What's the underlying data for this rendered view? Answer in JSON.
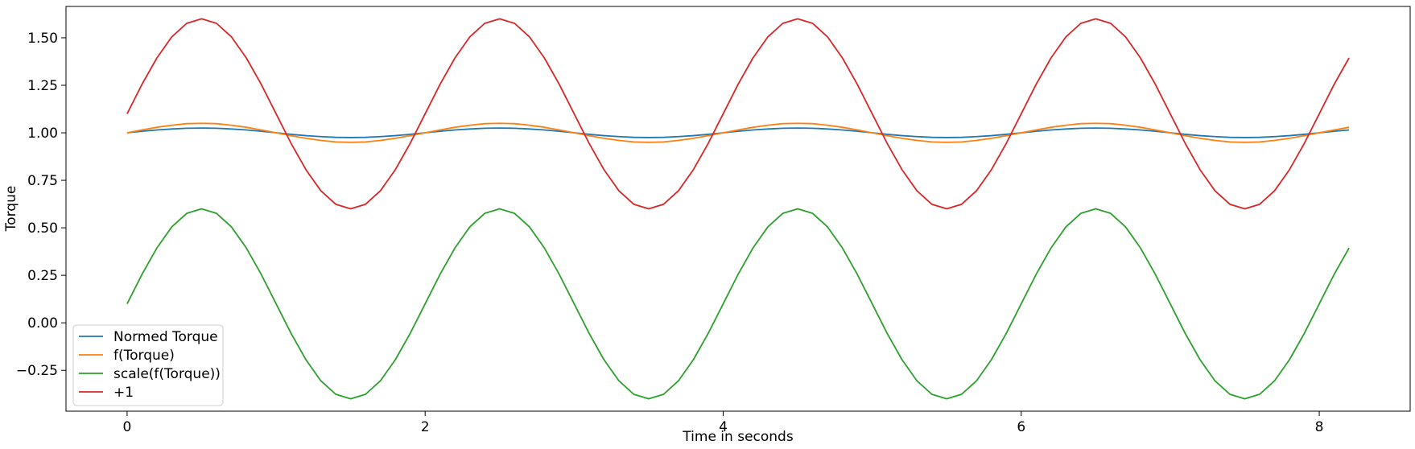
{
  "chart_data": {
    "type": "line",
    "title": "",
    "xlabel": "Time in seconds",
    "ylabel": "Torque",
    "xlim": [
      -0.41,
      8.61
    ],
    "ylim": [
      -0.465,
      1.665
    ],
    "xticks": [
      0,
      2,
      4,
      6,
      8
    ],
    "xtick_labels": [
      "0",
      "2",
      "4",
      "6",
      "8"
    ],
    "yticks": [
      -0.25,
      0,
      0.25,
      0.5,
      0.75,
      1.0,
      1.25,
      1.5
    ],
    "ytick_labels": [
      "−0.25",
      "0.00",
      "0.25",
      "0.50",
      "0.75",
      "1.00",
      "1.25",
      "1.50"
    ],
    "grid": false,
    "legend_position": "lower-left",
    "x": [
      0,
      0.1,
      0.2,
      0.3,
      0.4,
      0.5,
      0.6,
      0.7,
      0.8,
      0.9,
      1.0,
      1.1,
      1.2,
      1.3,
      1.4,
      1.5,
      1.6,
      1.7,
      1.8,
      1.9,
      2.0,
      2.1,
      2.2,
      2.3,
      2.4,
      2.5,
      2.6,
      2.7,
      2.8,
      2.9,
      3.0,
      3.1,
      3.2,
      3.3,
      3.4,
      3.5,
      3.6,
      3.7,
      3.8,
      3.9,
      4.0,
      4.1,
      4.2,
      4.3,
      4.4,
      4.5,
      4.6,
      4.7,
      4.8,
      4.9,
      5.0,
      5.1,
      5.2,
      5.3,
      5.4,
      5.5,
      5.6,
      5.7,
      5.8,
      5.9,
      6.0,
      6.1,
      6.2,
      6.3,
      6.4,
      6.5,
      6.6,
      6.7,
      6.8,
      6.9,
      7.0,
      7.1,
      7.2,
      7.3,
      7.4,
      7.5,
      7.6,
      7.7,
      7.8,
      7.9,
      8.0,
      8.1,
      8.2
    ],
    "series": [
      {
        "name": "Normed Torque",
        "color": "#1f77b4",
        "values": [
          1.0,
          1.008,
          1.015,
          1.02,
          1.024,
          1.025,
          1.024,
          1.02,
          1.015,
          1.008,
          1.0,
          0.992,
          0.985,
          0.98,
          0.976,
          0.975,
          0.976,
          0.98,
          0.985,
          0.992,
          1.0,
          1.008,
          1.015,
          1.02,
          1.024,
          1.025,
          1.024,
          1.02,
          1.015,
          1.008,
          1.0,
          0.992,
          0.985,
          0.98,
          0.976,
          0.975,
          0.976,
          0.98,
          0.985,
          0.992,
          1.0,
          1.008,
          1.015,
          1.02,
          1.024,
          1.025,
          1.024,
          1.02,
          1.015,
          1.008,
          1.0,
          0.992,
          0.985,
          0.98,
          0.976,
          0.975,
          0.976,
          0.98,
          0.985,
          0.992,
          1.0,
          1.008,
          1.015,
          1.02,
          1.024,
          1.025,
          1.024,
          1.02,
          1.015,
          1.008,
          1.0,
          0.992,
          0.985,
          0.98,
          0.976,
          0.975,
          0.976,
          0.98,
          0.985,
          0.992,
          1.0,
          1.008,
          1.015
        ]
      },
      {
        "name": "f(Torque)",
        "color": "#ff7f0e",
        "values": [
          1.0,
          1.015,
          1.029,
          1.04,
          1.048,
          1.05,
          1.048,
          1.04,
          1.029,
          1.015,
          1.0,
          0.985,
          0.971,
          0.96,
          0.952,
          0.95,
          0.952,
          0.96,
          0.971,
          0.985,
          1.0,
          1.015,
          1.029,
          1.04,
          1.048,
          1.05,
          1.048,
          1.04,
          1.029,
          1.015,
          1.0,
          0.985,
          0.971,
          0.96,
          0.952,
          0.95,
          0.952,
          0.96,
          0.971,
          0.985,
          1.0,
          1.015,
          1.029,
          1.04,
          1.048,
          1.05,
          1.048,
          1.04,
          1.029,
          1.015,
          1.0,
          0.985,
          0.971,
          0.96,
          0.952,
          0.95,
          0.952,
          0.96,
          0.971,
          0.985,
          1.0,
          1.015,
          1.029,
          1.04,
          1.048,
          1.05,
          1.048,
          1.04,
          1.029,
          1.015,
          1.0,
          0.985,
          0.971,
          0.96,
          0.952,
          0.95,
          0.952,
          0.96,
          0.971,
          0.985,
          1.0,
          1.015,
          1.029
        ]
      },
      {
        "name": "scale(f(Torque))",
        "color": "#2ca02c",
        "values": [
          0.1,
          0.255,
          0.394,
          0.505,
          0.576,
          0.6,
          0.576,
          0.505,
          0.394,
          0.255,
          0.1,
          -0.055,
          -0.194,
          -0.305,
          -0.376,
          -0.4,
          -0.376,
          -0.305,
          -0.194,
          -0.055,
          0.1,
          0.255,
          0.394,
          0.505,
          0.576,
          0.6,
          0.576,
          0.505,
          0.394,
          0.255,
          0.1,
          -0.055,
          -0.194,
          -0.305,
          -0.376,
          -0.4,
          -0.376,
          -0.305,
          -0.194,
          -0.055,
          0.1,
          0.255,
          0.394,
          0.505,
          0.576,
          0.6,
          0.576,
          0.505,
          0.394,
          0.255,
          0.1,
          -0.055,
          -0.194,
          -0.305,
          -0.376,
          -0.4,
          -0.376,
          -0.305,
          -0.194,
          -0.055,
          0.1,
          0.255,
          0.394,
          0.505,
          0.576,
          0.6,
          0.576,
          0.505,
          0.394,
          0.255,
          0.1,
          -0.055,
          -0.194,
          -0.305,
          -0.376,
          -0.4,
          -0.376,
          -0.305,
          -0.194,
          -0.055,
          0.1,
          0.255,
          0.394
        ]
      },
      {
        "name": "+1",
        "color": "#d62728",
        "values": [
          1.1,
          1.255,
          1.394,
          1.505,
          1.576,
          1.6,
          1.576,
          1.505,
          1.394,
          1.255,
          1.1,
          0.945,
          0.806,
          0.695,
          0.624,
          0.6,
          0.624,
          0.695,
          0.806,
          0.945,
          1.1,
          1.255,
          1.394,
          1.505,
          1.576,
          1.6,
          1.576,
          1.505,
          1.394,
          1.255,
          1.1,
          0.945,
          0.806,
          0.695,
          0.624,
          0.6,
          0.624,
          0.695,
          0.806,
          0.945,
          1.1,
          1.255,
          1.394,
          1.505,
          1.576,
          1.6,
          1.576,
          1.505,
          1.394,
          1.255,
          1.1,
          0.945,
          0.806,
          0.695,
          0.624,
          0.6,
          0.624,
          0.695,
          0.806,
          0.945,
          1.1,
          1.255,
          1.394,
          1.505,
          1.576,
          1.6,
          1.576,
          1.505,
          1.394,
          1.255,
          1.1,
          0.945,
          0.806,
          0.695,
          0.624,
          0.6,
          0.624,
          0.695,
          0.806,
          0.945,
          1.1,
          1.255,
          1.394
        ]
      }
    ]
  }
}
